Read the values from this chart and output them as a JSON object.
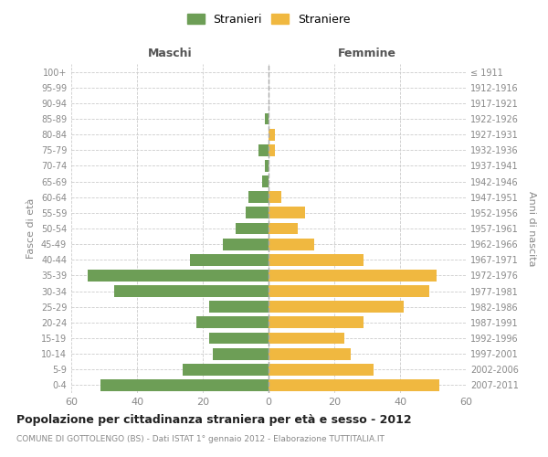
{
  "age_groups_bottom_to_top": [
    "0-4",
    "5-9",
    "10-14",
    "15-19",
    "20-24",
    "25-29",
    "30-34",
    "35-39",
    "40-44",
    "45-49",
    "50-54",
    "55-59",
    "60-64",
    "65-69",
    "70-74",
    "75-79",
    "80-84",
    "85-89",
    "90-94",
    "95-99",
    "100+"
  ],
  "birth_years_bottom_to_top": [
    "2007-2011",
    "2002-2006",
    "1997-2001",
    "1992-1996",
    "1987-1991",
    "1982-1986",
    "1977-1981",
    "1972-1976",
    "1967-1971",
    "1962-1966",
    "1957-1961",
    "1952-1956",
    "1947-1951",
    "1942-1946",
    "1937-1941",
    "1932-1936",
    "1927-1931",
    "1922-1926",
    "1917-1921",
    "1912-1916",
    "≤ 1911"
  ],
  "maschi_bottom_to_top": [
    51,
    26,
    17,
    18,
    22,
    18,
    47,
    55,
    24,
    14,
    10,
    7,
    6,
    2,
    1,
    3,
    0,
    1,
    0,
    0,
    0
  ],
  "femmine_bottom_to_top": [
    52,
    32,
    25,
    23,
    29,
    41,
    49,
    51,
    29,
    14,
    9,
    11,
    4,
    0,
    0,
    2,
    2,
    0,
    0,
    0,
    0
  ],
  "maschi_color": "#6d9e56",
  "femmine_color": "#f0b840",
  "background_color": "#ffffff",
  "grid_color": "#cccccc",
  "title": "Popolazione per cittadinanza straniera per età e sesso - 2012",
  "subtitle": "COMUNE DI GOTTOLENGO (BS) - Dati ISTAT 1° gennaio 2012 - Elaborazione TUTTITALIA.IT",
  "header_left": "Maschi",
  "header_right": "Femmine",
  "ylabel_left": "Fasce di età",
  "ylabel_right": "Anni di nascita",
  "legend_stranieri": "Stranieri",
  "legend_straniere": "Straniere",
  "xlim": 60,
  "figsize": [
    6.0,
    5.0
  ],
  "dpi": 100
}
